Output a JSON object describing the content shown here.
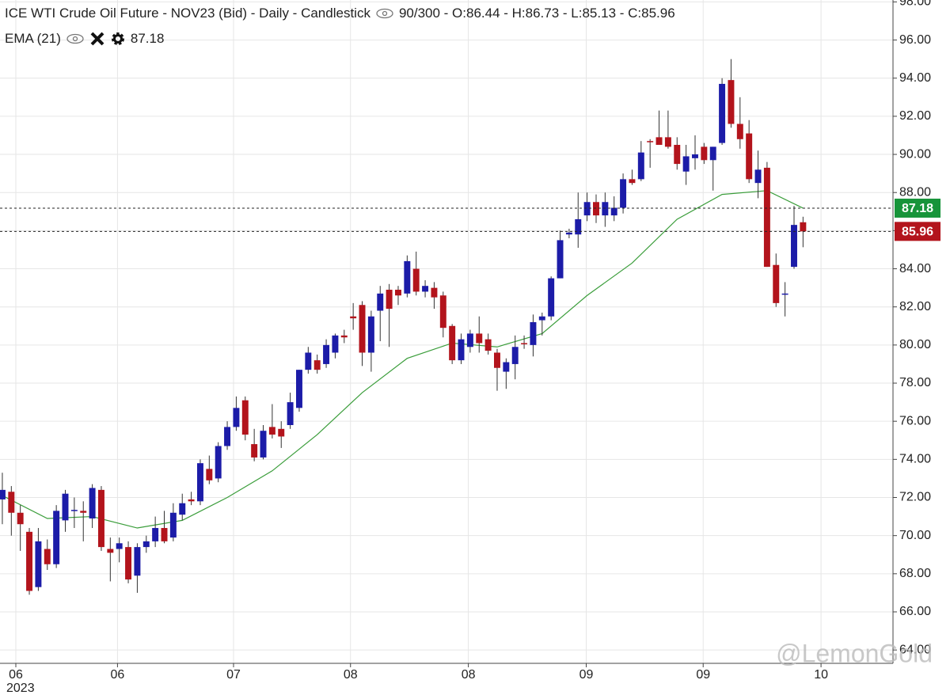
{
  "chart_data": {
    "type": "candlestick",
    "title": "ICE WTI Crude Oil Future - NOV23 (Bid) - Daily - Candlestick",
    "status_text": "90/300 - O:86.44 - H:86.73 - L:85.13 - C:85.96",
    "indicator": {
      "name": "EMA (21)",
      "value": "87.18"
    },
    "watermark": "@LemonGold",
    "year_label": "2023",
    "up_color": "#1c1ca8",
    "down_color": "#b3141c",
    "open": [
      71.9,
      72.3,
      71.2,
      70.2,
      67.3,
      69.3,
      68.5,
      70.8,
      71.3,
      71.3,
      70.9,
      72.4,
      69.3,
      69.3,
      69.4,
      67.9,
      69.4,
      69.7,
      70.4,
      69.9,
      71.1,
      71.9,
      71.8,
      73.5,
      73.0,
      74.7,
      75.7,
      77.1,
      74.8,
      74.1,
      75.7,
      75.6,
      75.8,
      76.7,
      78.7,
      79.2,
      79.0,
      79.6,
      80.5,
      81.5,
      82.1,
      79.6,
      81.8,
      82.9,
      82.9,
      82.7,
      84.0,
      82.8,
      83.0,
      82.6,
      81.0,
      79.2,
      79.9,
      80.6,
      80.3,
      79.6,
      78.6,
      79.0,
      80.1,
      80.0,
      81.3,
      81.5,
      83.5,
      85.8,
      85.8,
      86.8,
      87.5,
      86.8,
      86.8,
      87.2,
      88.7,
      88.7,
      90.7,
      90.9,
      90.9,
      90.5,
      89.1,
      89.8,
      90.4,
      89.7,
      90.6,
      93.9,
      91.6,
      91.1,
      88.5,
      89.3,
      84.2,
      82.65,
      84.1,
      86.44
    ],
    "high": [
      73.3,
      72.6,
      71.6,
      70.4,
      70.4,
      69.8,
      71.6,
      72.4,
      72.0,
      71.8,
      72.7,
      72.6,
      69.9,
      69.9,
      69.7,
      69.6,
      70.0,
      71.0,
      71.3,
      71.7,
      72.2,
      72.3,
      74.0,
      74.2,
      74.9,
      76.0,
      77.3,
      77.3,
      75.6,
      75.8,
      76.9,
      76.0,
      77.5,
      78.7,
      79.9,
      79.5,
      80.3,
      80.6,
      80.8,
      82.2,
      82.3,
      81.8,
      83.1,
      83.2,
      83.1,
      84.7,
      84.9,
      83.4,
      83.3,
      82.8,
      81.1,
      80.6,
      80.8,
      81.5,
      80.6,
      79.8,
      79.3,
      80.5,
      80.5,
      81.6,
      81.7,
      83.6,
      86.0,
      86.1,
      88.0,
      88.0,
      87.9,
      88.0,
      87.8,
      89.0,
      89.2,
      90.7,
      90.8,
      92.3,
      92.3,
      90.9,
      90.5,
      91.0,
      90.6,
      90.4,
      94.0,
      95.0,
      93.0,
      91.8,
      90.2,
      89.6,
      84.8,
      83.3,
      87.3,
      86.73
    ],
    "low": [
      70.6,
      70.0,
      69.2,
      66.9,
      67.1,
      68.2,
      68.3,
      70.2,
      70.4,
      69.7,
      70.4,
      69.2,
      67.6,
      68.6,
      67.5,
      67.0,
      69.1,
      69.4,
      69.6,
      69.7,
      70.8,
      71.6,
      71.6,
      72.7,
      72.8,
      74.5,
      75.5,
      75.0,
      73.9,
      74.0,
      75.1,
      74.6,
      75.6,
      76.5,
      78.5,
      78.5,
      78.8,
      79.3,
      80.1,
      80.8,
      78.9,
      78.6,
      80.2,
      79.9,
      82.1,
      82.5,
      82.6,
      82.5,
      81.9,
      80.4,
      79.0,
      79.0,
      79.6,
      79.6,
      79.5,
      77.6,
      77.7,
      78.2,
      79.8,
      79.4,
      80.5,
      81.3,
      83.5,
      85.6,
      85.1,
      86.5,
      86.4,
      86.2,
      86.5,
      86.9,
      88.4,
      88.6,
      89.3,
      90.5,
      90.3,
      89.2,
      88.4,
      89.2,
      89.5,
      88.1,
      90.5,
      91.4,
      90.3,
      88.5,
      87.7,
      84.1,
      82.0,
      81.5,
      84.0,
      85.13
    ],
    "close": [
      72.4,
      71.2,
      70.6,
      67.1,
      69.7,
      68.5,
      71.3,
      72.2,
      71.35,
      71.2,
      72.5,
      69.4,
      69.1,
      69.6,
      67.7,
      69.4,
      69.7,
      70.4,
      69.7,
      71.2,
      71.7,
      71.8,
      73.8,
      72.9,
      74.7,
      75.7,
      76.7,
      75.3,
      74.1,
      75.5,
      75.3,
      75.2,
      77.0,
      78.7,
      79.6,
      78.7,
      80.0,
      80.5,
      80.4,
      81.4,
      79.6,
      81.5,
      82.7,
      81.9,
      82.6,
      84.4,
      82.8,
      83.1,
      82.5,
      80.9,
      79.2,
      80.3,
      80.6,
      80.1,
      79.7,
      78.8,
      79.1,
      79.9,
      80.05,
      81.2,
      81.5,
      83.5,
      85.5,
      85.9,
      86.6,
      87.5,
      86.8,
      87.5,
      87.2,
      88.7,
      88.5,
      90.1,
      90.65,
      90.5,
      90.4,
      89.5,
      89.9,
      90.0,
      89.7,
      90.4,
      93.7,
      91.6,
      90.8,
      88.7,
      89.2,
      84.1,
      82.2,
      82.7,
      86.3,
      85.96
    ],
    "ema": {
      "name": "EMA (21)",
      "color": "#3a9d3a",
      "x": [
        0,
        5,
        10,
        15,
        20,
        25,
        30,
        35,
        40,
        45,
        50,
        55,
        60,
        65,
        70,
        75,
        80,
        85,
        89
      ],
      "values": [
        72.1,
        70.9,
        71.0,
        70.4,
        70.8,
        72.0,
        73.4,
        75.3,
        77.5,
        79.3,
        80.1,
        79.9,
        80.6,
        82.6,
        84.3,
        86.6,
        87.9,
        88.1,
        87.18
      ]
    },
    "price_labels": [
      {
        "value": 87.18,
        "color": "#17943a"
      },
      {
        "value": 85.96,
        "color": "#b3141c"
      }
    ],
    "xlim": [
      -0.26,
      99.0
    ],
    "xticks": [
      {
        "value": 1.5,
        "label": "06"
      },
      {
        "value": 12.8,
        "label": "06"
      },
      {
        "value": 25.7,
        "label": "07"
      },
      {
        "value": 38.7,
        "label": "08"
      },
      {
        "value": 51.8,
        "label": "08"
      },
      {
        "value": 64.9,
        "label": "09"
      },
      {
        "value": 77.9,
        "label": "09"
      },
      {
        "value": 91.0,
        "label": "10"
      }
    ],
    "ylim": [
      63.3,
      98.1
    ],
    "yticks": [
      {
        "value": 64,
        "label": "64.00"
      },
      {
        "value": 66,
        "label": "66.00"
      },
      {
        "value": 68,
        "label": "68.00"
      },
      {
        "value": 70,
        "label": "70.00"
      },
      {
        "value": 72,
        "label": "72.00"
      },
      {
        "value": 74,
        "label": "74.00"
      },
      {
        "value": 76,
        "label": "76.00"
      },
      {
        "value": 78,
        "label": "78.00"
      },
      {
        "value": 80,
        "label": "80.00"
      },
      {
        "value": 82,
        "label": "82.00"
      },
      {
        "value": 84,
        "label": "84.00"
      },
      {
        "value": 86,
        "label": "86.00"
      },
      {
        "value": 88,
        "label": "88.00"
      },
      {
        "value": 90,
        "label": "90.00"
      },
      {
        "value": 92,
        "label": "92.00"
      },
      {
        "value": 94,
        "label": "94.00"
      },
      {
        "value": 96,
        "label": "96.00"
      },
      {
        "value": 98,
        "label": "98.00"
      }
    ],
    "grid": true
  }
}
